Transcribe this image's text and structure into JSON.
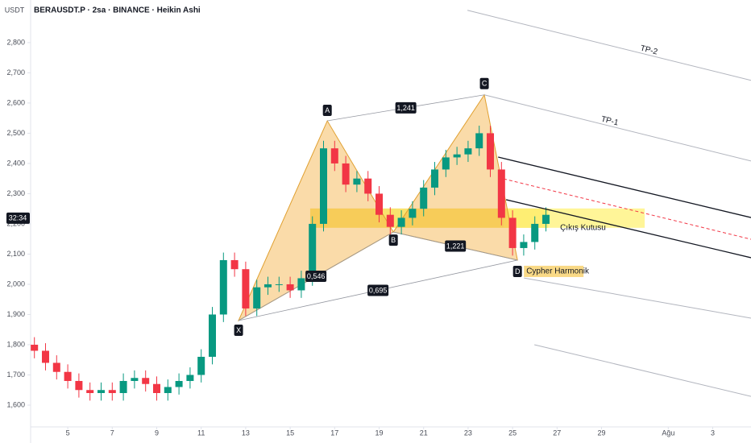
{
  "chart_data": {
    "type": "candlestick",
    "title": "BERAUSDT.P · 2sa · BINANCE · Heikin Ashi",
    "y_axis_label": "USDT",
    "xlim": [
      3.33,
      35.72
    ],
    "ylim": [
      1528,
      2941
    ],
    "xticks": [
      5,
      7,
      9,
      11,
      13,
      15,
      17,
      19,
      21,
      23,
      25,
      27,
      29,
      {
        "value": 32,
        "label": "Ağu"
      },
      3.0001
    ],
    "yticks": [
      {
        "value": 1600,
        "label": "1,600"
      },
      {
        "value": 1700,
        "label": "1,700"
      },
      {
        "value": 1800,
        "label": "1,800"
      },
      {
        "value": 1900,
        "label": "1,900"
      },
      {
        "value": 2000,
        "label": "2,000"
      },
      {
        "value": 2100,
        "label": "2,100"
      },
      {
        "value": 2200,
        "label": "2,200"
      },
      {
        "value": 2300,
        "label": "2,300"
      },
      {
        "value": 2400,
        "label": "2,400"
      },
      {
        "value": 2500,
        "label": "2,500"
      },
      {
        "value": 2600,
        "label": "2,600"
      },
      {
        "value": 2700,
        "label": "2,700"
      },
      {
        "value": 2800,
        "label": "2,800"
      }
    ],
    "up_color": "#089981",
    "down_color": "#f23645",
    "x": [
      3.5,
      4,
      4.5,
      5,
      5.5,
      6,
      6.5,
      7,
      7.5,
      8,
      8.5,
      9,
      9.5,
      10,
      10.5,
      11,
      11.5,
      12,
      12.5,
      13,
      13.5,
      14,
      14.5,
      15,
      15.5,
      16,
      16.5,
      17,
      17.5,
      18,
      18.5,
      19,
      19.5,
      20,
      20.5,
      21,
      21.5,
      22,
      22.5,
      23,
      23.5,
      24,
      24.5,
      25,
      25.5,
      26,
      26.5
    ],
    "open": [
      1800,
      1780,
      1740,
      1710,
      1680,
      1650,
      1640,
      1650,
      1640,
      1680,
      1690,
      1670,
      1640,
      1660,
      1680,
      1700,
      1760,
      1900,
      2080,
      2050,
      1920,
      1990,
      2000,
      2000,
      1980,
      2020,
      2200,
      2450,
      2400,
      2330,
      2350,
      2300,
      2230,
      2190,
      2220,
      2250,
      2320,
      2380,
      2420,
      2430,
      2450,
      2500,
      2380,
      2220,
      2120,
      2140,
      2200
    ],
    "high": [
      1825,
      1805,
      1765,
      1735,
      1705,
      1675,
      1675,
      1675,
      1705,
      1715,
      1715,
      1695,
      1685,
      1705,
      1725,
      1785,
      1925,
      2105,
      2105,
      2075,
      2015,
      2025,
      2025,
      2025,
      2045,
      2225,
      2475,
      2475,
      2425,
      2375,
      2375,
      2325,
      2255,
      2245,
      2275,
      2345,
      2405,
      2445,
      2455,
      2475,
      2525,
      2525,
      2405,
      2245,
      2165,
      2225,
      2255
    ],
    "low": [
      1755,
      1715,
      1685,
      1655,
      1625,
      1615,
      1615,
      1615,
      1615,
      1655,
      1645,
      1615,
      1615,
      1635,
      1655,
      1675,
      1735,
      1875,
      2025,
      1895,
      1895,
      1965,
      1975,
      1955,
      1955,
      1995,
      2175,
      2375,
      2305,
      2305,
      2275,
      2205,
      2165,
      2165,
      2195,
      2225,
      2295,
      2355,
      2395,
      2405,
      2425,
      2355,
      2195,
      2095,
      2095,
      2115,
      2175
    ],
    "close": [
      1780,
      1740,
      1710,
      1680,
      1650,
      1640,
      1650,
      1640,
      1680,
      1690,
      1670,
      1640,
      1660,
      1680,
      1700,
      1760,
      1900,
      2080,
      2050,
      1920,
      1990,
      2000,
      2000,
      1980,
      2020,
      2200,
      2450,
      2400,
      2330,
      2350,
      2300,
      2230,
      2190,
      2220,
      2250,
      2320,
      2380,
      2420,
      2430,
      2450,
      2500,
      2380,
      2220,
      2120,
      2140,
      2200,
      2230
    ],
    "last_price": 2219,
    "countdown": "32:34",
    "pattern": {
      "name": "Cypher Harmonik",
      "fill": "#f5b041",
      "points": [
        {
          "label": "X",
          "x": 12.68,
          "y": 1880
        },
        {
          "label": "A",
          "x": 16.67,
          "y": 2541
        },
        {
          "label": "B",
          "x": 19.64,
          "y": 2173
        },
        {
          "label": "C",
          "x": 23.73,
          "y": 2627
        },
        {
          "label": "D",
          "x": 25.22,
          "y": 2080
        }
      ],
      "ratios": [
        "0,546",
        "1,241",
        "1,221",
        "0,695"
      ]
    },
    "zones": [
      {
        "x": [
          15.9,
          26.6
        ],
        "y": [
          2187,
          2251
        ],
        "color": "#f7d93e"
      },
      {
        "x": [
          24.6,
          30.94
        ],
        "y": [
          2187,
          2251
        ],
        "color": "#fff176",
        "label": "Çıkış Kutusu"
      }
    ],
    "trend_lines": [
      {
        "x": [
          22.97,
          35.72
        ],
        "y": [
          2907,
          2675
        ],
        "color": "#b2b5be",
        "label": "TP-2"
      },
      {
        "x": [
          23.73,
          35.72
        ],
        "y": [
          2627,
          2408
        ],
        "color": "#b2b5be",
        "label": "TP-1"
      },
      {
        "x": [
          24.35,
          35.72
        ],
        "y": [
          2421,
          2221
        ],
        "color": "#131722"
      },
      {
        "x": [
          24.6,
          35.72
        ],
        "y": [
          2349,
          2149
        ],
        "color": "#f23645",
        "dashed": true
      },
      {
        "x": [
          24.71,
          35.72
        ],
        "y": [
          2280,
          2088
        ],
        "color": "#131722"
      },
      {
        "x": [
          25.51,
          35.72
        ],
        "y": [
          2021,
          1888
        ],
        "color": "#b2b5be"
      },
      {
        "x": [
          25.98,
          35.72
        ],
        "y": [
          1800,
          1629
        ],
        "color": "#b2b5be"
      }
    ]
  }
}
